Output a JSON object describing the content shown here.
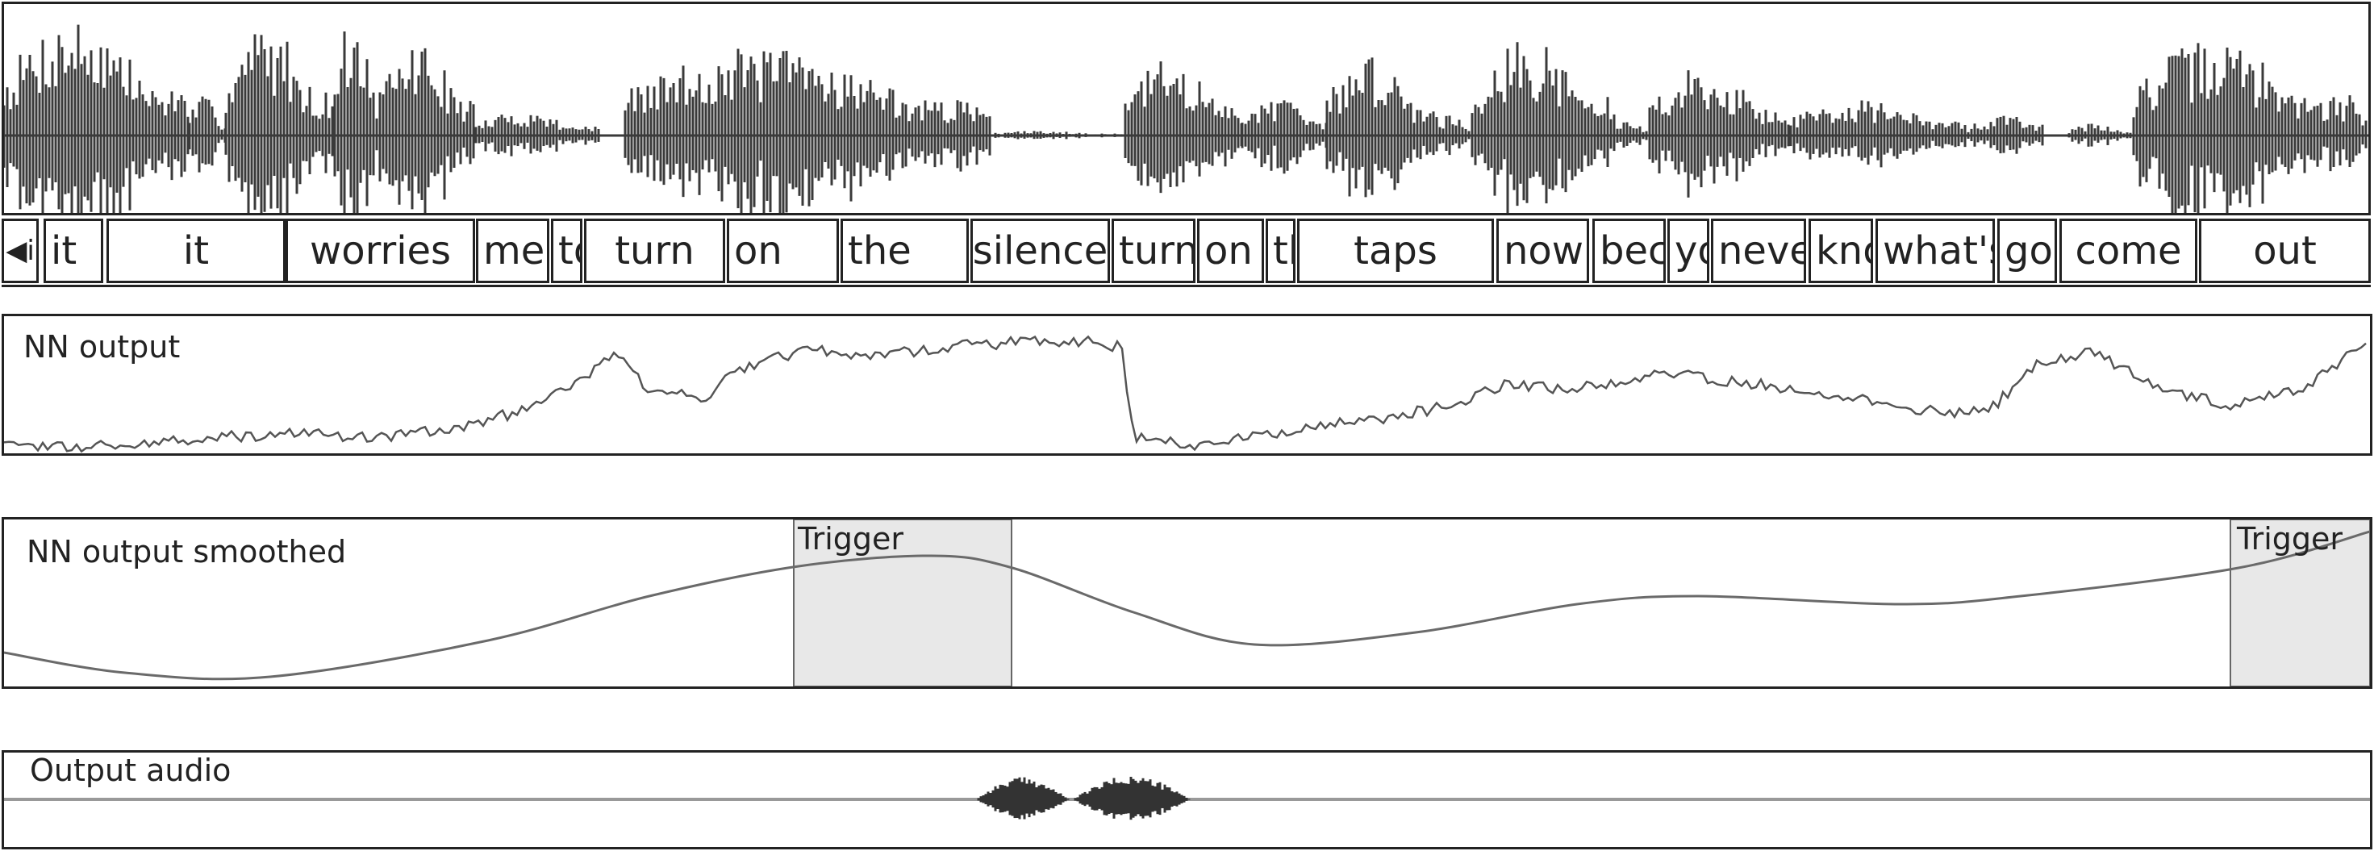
{
  "waveform": {
    "segments": [
      {
        "amp": 0.95,
        "dense": 0.9
      },
      {
        "amp": 0.0,
        "dense": 0.0
      }
    ]
  },
  "words": {
    "prev_icon": "arrow-left-icon",
    "prev_label": "i",
    "items": [
      {
        "label": "it"
      },
      {
        "label": "it"
      },
      {
        "label": "worries"
      },
      {
        "label": "me"
      },
      {
        "label": "to"
      },
      {
        "label": "turn"
      },
      {
        "label": "on"
      },
      {
        "label": "the"
      },
      {
        "label": "[silence]"
      },
      {
        "label": "turn"
      },
      {
        "label": "on"
      },
      {
        "label": "the"
      },
      {
        "label": "taps"
      },
      {
        "label": "now"
      },
      {
        "label": "because"
      },
      {
        "label": "you"
      },
      {
        "label": "never"
      },
      {
        "label": "know"
      },
      {
        "label": "what's"
      },
      {
        "label": "going"
      },
      {
        "label": "come"
      },
      {
        "label": "out"
      }
    ]
  },
  "nn_output": {
    "title": "NN output"
  },
  "nn_smoothed": {
    "title": "NN output smoothed",
    "triggers": [
      {
        "label": "Trigger"
      },
      {
        "label": "Trigger"
      }
    ]
  },
  "output_audio": {
    "title": "Output audio"
  },
  "colors": {
    "ink": "#222222",
    "wave": "#3a3a3a",
    "signal": "#8a8a8a",
    "trigger_fill": "#e8e8e8"
  }
}
